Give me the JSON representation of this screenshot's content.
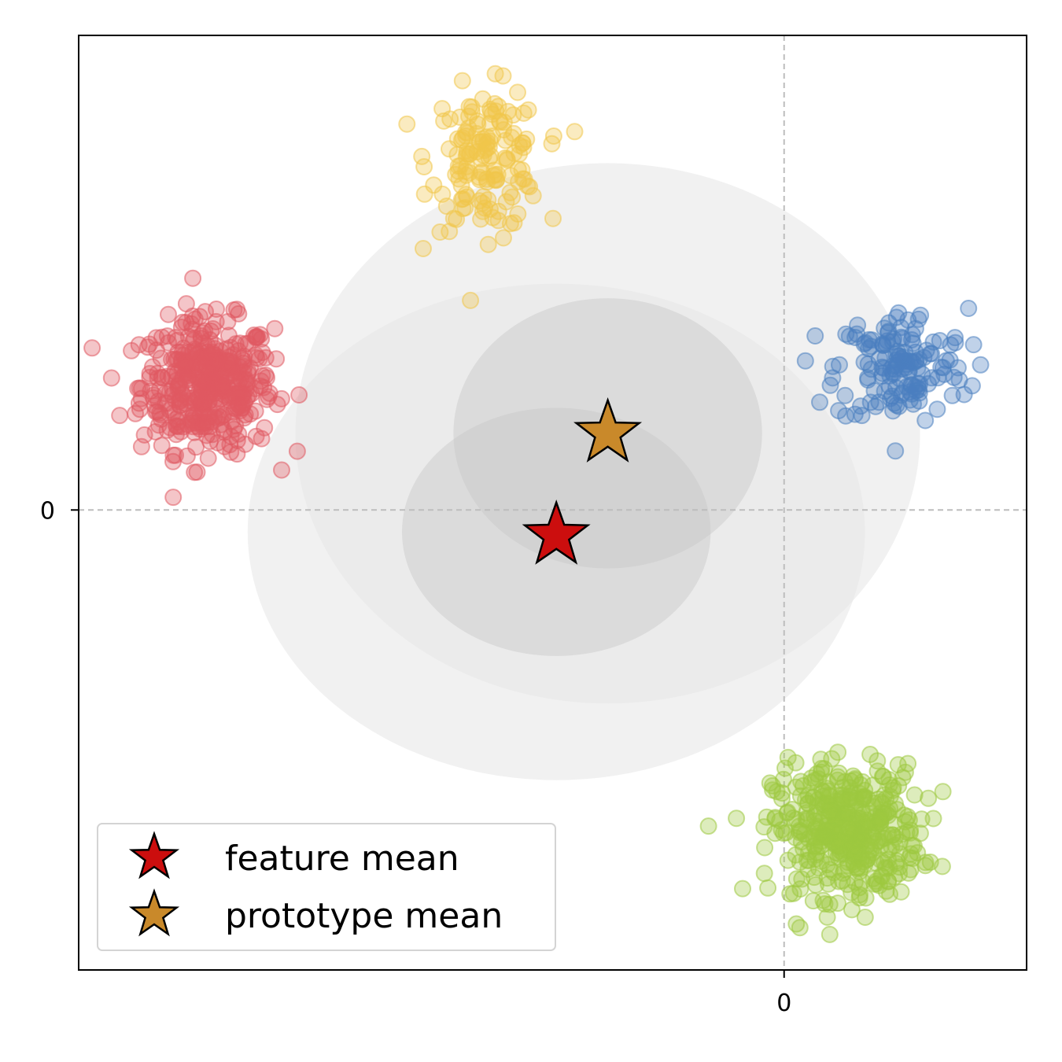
{
  "chart_data": {
    "type": "scatter",
    "title": "",
    "xlabel": "",
    "ylabel": "",
    "xlim": [
      -9.6,
      3.3
    ],
    "ylim": [
      -6.3,
      6.5
    ],
    "x_ticks": [
      {
        "value": 0,
        "label": "0"
      }
    ],
    "y_ticks": [
      {
        "value": 0,
        "label": "0"
      }
    ],
    "grid": false,
    "reference_lines": [
      {
        "orientation": "vertical",
        "value": 0
      },
      {
        "orientation": "horizontal",
        "value": 0
      }
    ],
    "clusters": [
      {
        "color": "#e05a62",
        "center": [
          -7.85,
          1.7
        ],
        "spread": [
          0.45,
          0.45
        ],
        "count": 420
      },
      {
        "color": "#f0c74a",
        "center": [
          -4.05,
          4.8
        ],
        "spread": [
          0.38,
          0.48
        ],
        "count": 150
      },
      {
        "color": "#4a7fbf",
        "center": [
          1.6,
          1.95
        ],
        "spread": [
          0.45,
          0.4
        ],
        "count": 150
      },
      {
        "color": "#9dc83f",
        "center": [
          0.85,
          -4.4
        ],
        "spread": [
          0.5,
          0.45
        ],
        "count": 420
      }
    ],
    "gaussian_regions": [
      {
        "center": [
          -3.1,
          -0.3
        ],
        "radii": [
          4.2,
          3.4
        ],
        "fill": "#e6e6e6",
        "opacity": 0.55
      },
      {
        "center": [
          -2.4,
          1.05
        ],
        "radii": [
          4.25,
          3.7
        ],
        "fill": "#e6e6e6",
        "opacity": 0.55
      },
      {
        "center": [
          -3.1,
          -0.3
        ],
        "radii": [
          2.1,
          1.7
        ],
        "fill": "#c8c8c8",
        "opacity": 0.45
      },
      {
        "center": [
          -2.4,
          1.05
        ],
        "radii": [
          2.1,
          1.85
        ],
        "fill": "#c8c8c8",
        "opacity": 0.45
      }
    ],
    "markers": [
      {
        "name": "feature mean",
        "x": -3.1,
        "y": -0.35,
        "color": "#cc0e0e"
      },
      {
        "name": "prototype mean",
        "x": -2.4,
        "y": 1.05,
        "color": "#c9892a"
      }
    ],
    "legend": {
      "placement": "lower-left",
      "entries": [
        {
          "label": "feature mean",
          "color": "#cc0e0e"
        },
        {
          "label": "prototype mean",
          "color": "#c9892a"
        }
      ]
    }
  }
}
